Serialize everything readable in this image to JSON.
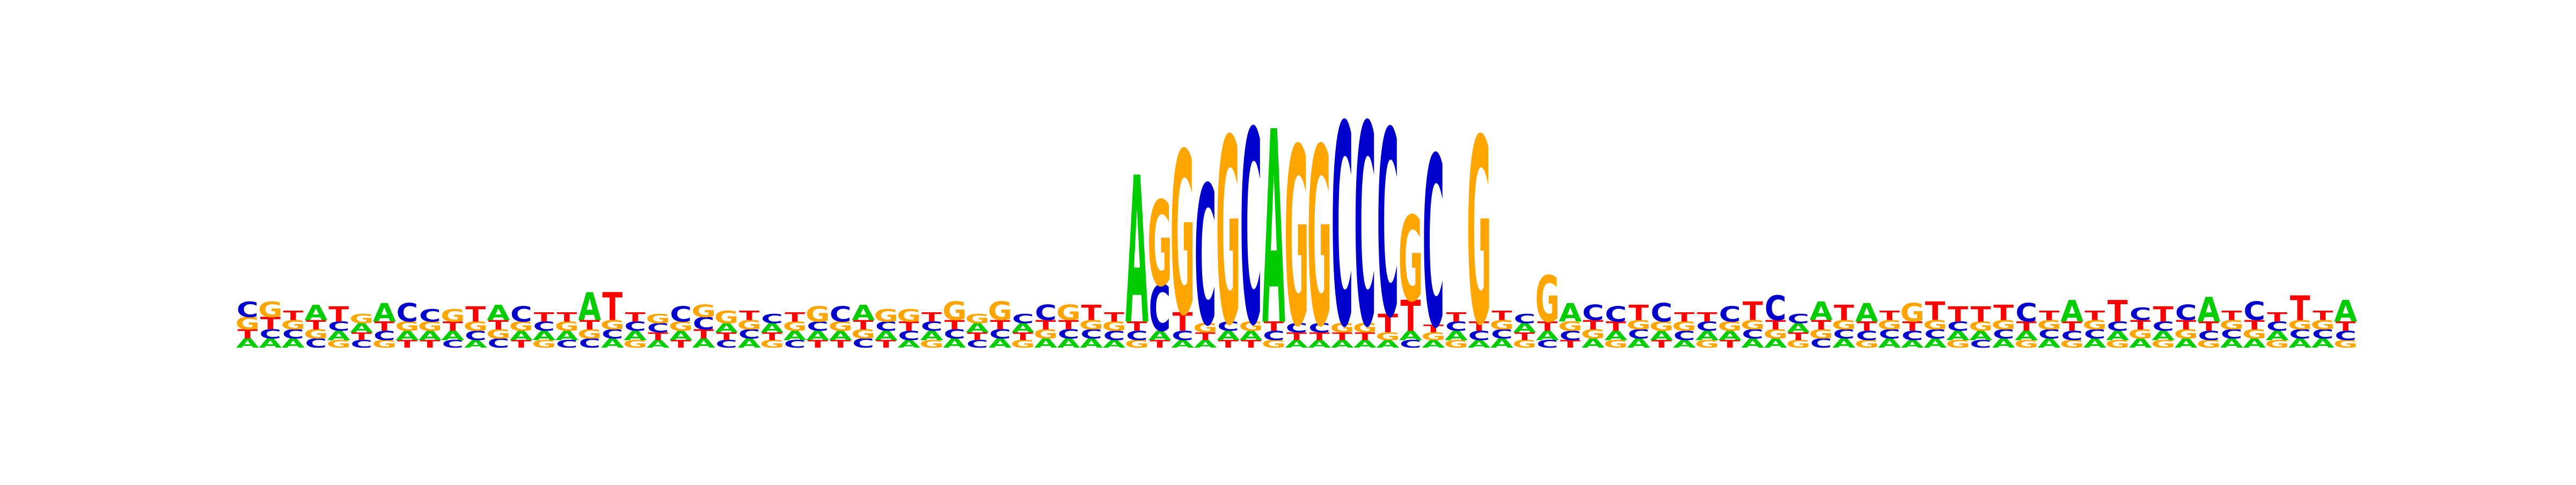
{
  "chart_data": {
    "type": "sequence-logo",
    "alphabet": [
      "A",
      "C",
      "G",
      "T"
    ],
    "colors": {
      "A": "#00cc00",
      "C": "#0000cc",
      "G": "#ffa500",
      "T": "#ff0000"
    },
    "ylim": [
      0,
      2
    ],
    "positions": [
      {
        "A": 0.06,
        "C": 0.1,
        "G": 0.08,
        "T": 0.06
      },
      {
        "A": 0.06,
        "C": 0.06,
        "G": 0.1,
        "T": 0.08
      },
      {
        "A": 0.06,
        "C": 0.06,
        "G": 0.06,
        "T": 0.06
      },
      {
        "A": 0.1,
        "C": 0.06,
        "G": 0.06,
        "T": 0.06
      },
      {
        "A": 0.06,
        "C": 0.06,
        "G": 0.05,
        "T": 0.1
      },
      {
        "A": 0.06,
        "C": 0.05,
        "G": 0.06,
        "T": 0.05
      },
      {
        "A": 0.12,
        "C": 0.06,
        "G": 0.05,
        "T": 0.06
      },
      {
        "A": 0.06,
        "C": 0.12,
        "G": 0.06,
        "T": 0.05
      },
      {
        "A": 0.06,
        "C": 0.08,
        "G": 0.06,
        "T": 0.05
      },
      {
        "A": 0.06,
        "C": 0.05,
        "G": 0.08,
        "T": 0.06
      },
      {
        "A": 0.05,
        "C": 0.06,
        "G": 0.06,
        "T": 0.1
      },
      {
        "A": 0.1,
        "C": 0.06,
        "G": 0.06,
        "T": 0.06
      },
      {
        "A": 0.06,
        "C": 0.1,
        "G": 0.06,
        "T": 0.05
      },
      {
        "A": 0.06,
        "C": 0.06,
        "G": 0.05,
        "T": 0.06
      },
      {
        "A": 0.06,
        "C": 0.05,
        "G": 0.06,
        "T": 0.06
      },
      {
        "A": 0.18,
        "C": 0.06,
        "G": 0.06,
        "T": 0.06
      },
      {
        "A": 0.06,
        "C": 0.06,
        "G": 0.06,
        "T": 0.18
      },
      {
        "A": 0.06,
        "C": 0.06,
        "G": 0.05,
        "T": 0.06
      },
      {
        "A": 0.05,
        "C": 0.06,
        "G": 0.06,
        "T": 0.05
      },
      {
        "A": 0.06,
        "C": 0.1,
        "G": 0.06,
        "T": 0.05
      },
      {
        "A": 0.06,
        "C": 0.08,
        "G": 0.08,
        "T": 0.06
      },
      {
        "A": 0.06,
        "C": 0.05,
        "G": 0.08,
        "T": 0.05
      },
      {
        "A": 0.06,
        "C": 0.06,
        "G": 0.06,
        "T": 0.06
      },
      {
        "A": 0.06,
        "C": 0.06,
        "G": 0.05,
        "T": 0.05
      },
      {
        "A": 0.06,
        "C": 0.05,
        "G": 0.06,
        "T": 0.06
      },
      {
        "A": 0.06,
        "C": 0.06,
        "G": 0.1,
        "T": 0.05
      },
      {
        "A": 0.06,
        "C": 0.1,
        "G": 0.06,
        "T": 0.05
      },
      {
        "A": 0.1,
        "C": 0.06,
        "G": 0.06,
        "T": 0.06
      },
      {
        "A": 0.06,
        "C": 0.06,
        "G": 0.08,
        "T": 0.05
      },
      {
        "A": 0.05,
        "C": 0.06,
        "G": 0.08,
        "T": 0.06
      },
      {
        "A": 0.06,
        "C": 0.06,
        "G": 0.05,
        "T": 0.06
      },
      {
        "A": 0.06,
        "C": 0.06,
        "G": 0.12,
        "T": 0.06
      },
      {
        "A": 0.06,
        "C": 0.05,
        "G": 0.06,
        "T": 0.05
      },
      {
        "A": 0.06,
        "C": 0.06,
        "G": 0.12,
        "T": 0.06
      },
      {
        "A": 0.06,
        "C": 0.06,
        "G": 0.05,
        "T": 0.05
      },
      {
        "A": 0.06,
        "C": 0.1,
        "G": 0.06,
        "T": 0.06
      },
      {
        "A": 0.06,
        "C": 0.06,
        "G": 0.1,
        "T": 0.06
      },
      {
        "A": 0.06,
        "C": 0.06,
        "G": 0.06,
        "T": 0.1
      },
      {
        "A": 0.05,
        "C": 0.06,
        "G": 0.06,
        "T": 0.06
      },
      {
        "A": 0.95,
        "C": 0.06,
        "G": 0.05,
        "T": 0.06
      },
      {
        "A": 0.06,
        "C": 0.3,
        "G": 0.55,
        "T": 0.05
      },
      {
        "A": 0.05,
        "C": 0.06,
        "G": 1.05,
        "T": 0.12
      },
      {
        "A": 0.05,
        "C": 0.9,
        "G": 0.06,
        "T": 0.05
      },
      {
        "A": 0.06,
        "C": 0.06,
        "G": 1.2,
        "T": 0.05
      },
      {
        "A": 0.06,
        "C": 1.25,
        "G": 0.06,
        "T": 0.05
      },
      {
        "A": 1.25,
        "C": 0.06,
        "G": 0.05,
        "T": 0.06
      },
      {
        "A": 0.05,
        "C": 0.06,
        "G": 1.15,
        "T": 0.05
      },
      {
        "A": 0.05,
        "C": 0.06,
        "G": 1.15,
        "T": 0.05
      },
      {
        "A": 0.05,
        "C": 1.3,
        "G": 0.06,
        "T": 0.05
      },
      {
        "A": 0.05,
        "C": 1.3,
        "G": 0.06,
        "T": 0.05
      },
      {
        "A": 0.05,
        "C": 1.2,
        "G": 0.05,
        "T": 0.12
      },
      {
        "A": 0.06,
        "C": 0.05,
        "G": 0.55,
        "T": 0.2
      },
      {
        "A": 0.05,
        "C": 1.1,
        "G": 0.05,
        "T": 0.05
      },
      {
        "A": 0.06,
        "C": 0.06,
        "G": 0.05,
        "T": 0.06
      },
      {
        "A": 0.05,
        "C": 0.06,
        "G": 1.2,
        "T": 0.06
      },
      {
        "A": 0.06,
        "C": 0.06,
        "G": 0.06,
        "T": 0.06
      },
      {
        "A": 0.06,
        "C": 0.06,
        "G": 0.05,
        "T": 0.05
      },
      {
        "A": 0.06,
        "C": 0.05,
        "G": 0.3,
        "T": 0.06
      },
      {
        "A": 0.12,
        "C": 0.06,
        "G": 0.06,
        "T": 0.05
      },
      {
        "A": 0.06,
        "C": 0.1,
        "G": 0.06,
        "T": 0.06
      },
      {
        "A": 0.06,
        "C": 0.1,
        "G": 0.05,
        "T": 0.06
      },
      {
        "A": 0.06,
        "C": 0.06,
        "G": 0.06,
        "T": 0.1
      },
      {
        "A": 0.06,
        "C": 0.12,
        "G": 0.06,
        "T": 0.05
      },
      {
        "A": 0.05,
        "C": 0.06,
        "G": 0.06,
        "T": 0.06
      },
      {
        "A": 0.06,
        "C": 0.06,
        "G": 0.05,
        "T": 0.06
      },
      {
        "A": 0.06,
        "C": 0.1,
        "G": 0.06,
        "T": 0.05
      },
      {
        "A": 0.06,
        "C": 0.06,
        "G": 0.06,
        "T": 0.12
      },
      {
        "A": 0.06,
        "C": 0.16,
        "G": 0.06,
        "T": 0.06
      },
      {
        "A": 0.06,
        "C": 0.06,
        "G": 0.05,
        "T": 0.05
      },
      {
        "A": 0.12,
        "C": 0.06,
        "G": 0.06,
        "T": 0.06
      },
      {
        "A": 0.06,
        "C": 0.06,
        "G": 0.06,
        "T": 0.1
      },
      {
        "A": 0.12,
        "C": 0.06,
        "G": 0.05,
        "T": 0.06
      },
      {
        "A": 0.06,
        "C": 0.06,
        "G": 0.06,
        "T": 0.06
      },
      {
        "A": 0.05,
        "C": 0.06,
        "G": 0.12,
        "T": 0.06
      },
      {
        "A": 0.06,
        "C": 0.06,
        "G": 0.06,
        "T": 0.12
      },
      {
        "A": 0.06,
        "C": 0.06,
        "G": 0.05,
        "T": 0.1
      },
      {
        "A": 0.06,
        "C": 0.05,
        "G": 0.06,
        "T": 0.1
      },
      {
        "A": 0.06,
        "C": 0.06,
        "G": 0.06,
        "T": 0.1
      },
      {
        "A": 0.06,
        "C": 0.12,
        "G": 0.05,
        "T": 0.06
      },
      {
        "A": 0.06,
        "C": 0.06,
        "G": 0.06,
        "T": 0.06
      },
      {
        "A": 0.14,
        "C": 0.06,
        "G": 0.05,
        "T": 0.06
      },
      {
        "A": 0.06,
        "C": 0.06,
        "G": 0.06,
        "T": 0.06
      },
      {
        "A": 0.06,
        "C": 0.06,
        "G": 0.05,
        "T": 0.14
      },
      {
        "A": 0.06,
        "C": 0.08,
        "G": 0.06,
        "T": 0.06
      },
      {
        "A": 0.06,
        "C": 0.06,
        "G": 0.05,
        "T": 0.1
      },
      {
        "A": 0.06,
        "C": 0.1,
        "G": 0.06,
        "T": 0.06
      },
      {
        "A": 0.16,
        "C": 0.06,
        "G": 0.05,
        "T": 0.06
      },
      {
        "A": 0.06,
        "C": 0.06,
        "G": 0.06,
        "T": 0.06
      },
      {
        "A": 0.06,
        "C": 0.12,
        "G": 0.06,
        "T": 0.06
      },
      {
        "A": 0.06,
        "C": 0.06,
        "G": 0.05,
        "T": 0.06
      },
      {
        "A": 0.06,
        "C": 0.06,
        "G": 0.06,
        "T": 0.16
      },
      {
        "A": 0.06,
        "C": 0.06,
        "G": 0.06,
        "T": 0.06
      },
      {
        "A": 0.14,
        "C": 0.06,
        "G": 0.05,
        "T": 0.06
      }
    ]
  }
}
